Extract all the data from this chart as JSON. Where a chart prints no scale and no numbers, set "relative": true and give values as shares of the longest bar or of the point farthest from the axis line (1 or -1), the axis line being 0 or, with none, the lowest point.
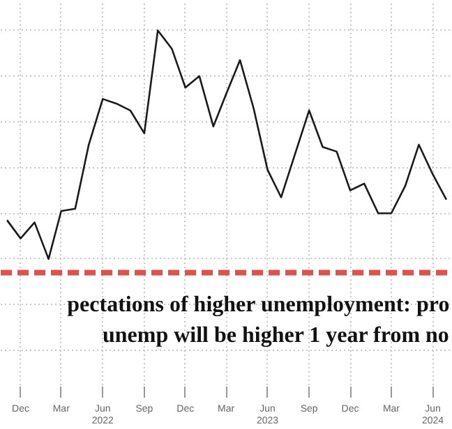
{
  "chart_data": {
    "type": "line",
    "relative": true,
    "x": [
      "2021-11",
      "2021-12",
      "2022-01",
      "2022-02",
      "2022-03",
      "2022-04",
      "2022-05",
      "2022-06",
      "2022-07",
      "2022-08",
      "2022-09",
      "2022-10",
      "2022-11",
      "2022-12",
      "2023-01",
      "2023-02",
      "2023-03",
      "2023-04",
      "2023-05",
      "2023-06",
      "2023-07",
      "2023-08",
      "2023-09",
      "2023-10",
      "2023-11",
      "2023-12",
      "2024-01",
      "2024-02",
      "2024-03",
      "2024-04",
      "2024-05",
      "2024-06",
      "2024-07"
    ],
    "series": [
      {
        "color": "#1a1a1a",
        "values": [
          0.17,
          0.09,
          0.16,
          0,
          0.21,
          0.22,
          0.5,
          0.7,
          0.68,
          0.65,
          0.55,
          1,
          0.92,
          0.75,
          0.8,
          0.58,
          0.72,
          0.87,
          0.66,
          0.39,
          0.27,
          0.46,
          0.65,
          0.49,
          0.47,
          0.3,
          0.33,
          0.2,
          0.2,
          0.32,
          0.5,
          0.37,
          0.26
        ]
      }
    ],
    "xlim": [
      "2021-10-18",
      "2024-07-15"
    ],
    "xticks": [
      {
        "value": "2021-12",
        "label": "Dec"
      },
      {
        "value": "2022-03",
        "label": "Mar"
      },
      {
        "value": "2022-06",
        "label": "Jun\n2022"
      },
      {
        "value": "2022-09",
        "label": "Sep"
      },
      {
        "value": "2022-12",
        "label": "Dec"
      },
      {
        "value": "2023-03",
        "label": "Mar"
      },
      {
        "value": "2023-06",
        "label": "Jun\n2023"
      },
      {
        "value": "2023-09",
        "label": "Sep"
      },
      {
        "value": "2023-12",
        "label": "Dec"
      },
      {
        "value": "2024-03",
        "label": "Mar"
      },
      {
        "value": "2024-06",
        "label": "Jun\n2024"
      }
    ],
    "ref_lines": [
      {
        "axis": "y",
        "value": -0.06,
        "color": "#d9534f",
        "line_style": "dashed"
      }
    ],
    "annotations": [
      "pectations of higher unemployment: pro",
      "unemp will be higher 1 year from no"
    ],
    "grid": true,
    "line_style": "solid",
    "marker": "none"
  }
}
